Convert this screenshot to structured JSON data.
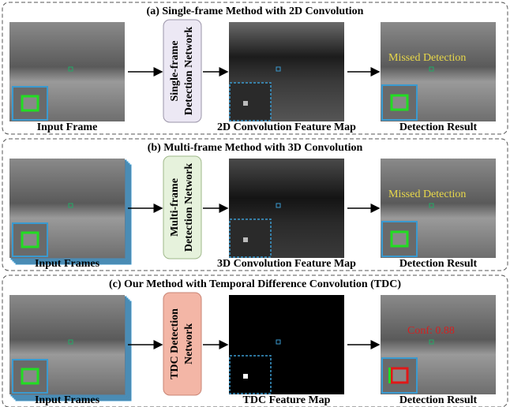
{
  "panels": [
    {
      "title": "(a) Single-frame Method with 2D Convolution",
      "network": [
        "Single-frame",
        "Detection Network"
      ],
      "labels": [
        "Input Frame",
        "2D Convolution Feature Map",
        "Detection Result"
      ],
      "annotation": "Missed Detection"
    },
    {
      "title": "(b) Multi-frame Method with 3D Convolution",
      "network": [
        "Multi-frame",
        "Detection Network"
      ],
      "labels": [
        "Input Frames",
        "3D Convolution Feature Map",
        "Detection Result"
      ],
      "annotation": "Missed Detection"
    },
    {
      "title": "(c) Our Method with Temporal Difference Convolution (TDC)",
      "network": [
        "TDC Detection",
        "Network"
      ],
      "labels": [
        "Input Frames",
        "TDC Feature Map",
        "Detection Result"
      ],
      "annotation": "Conf: 0.88"
    }
  ]
}
